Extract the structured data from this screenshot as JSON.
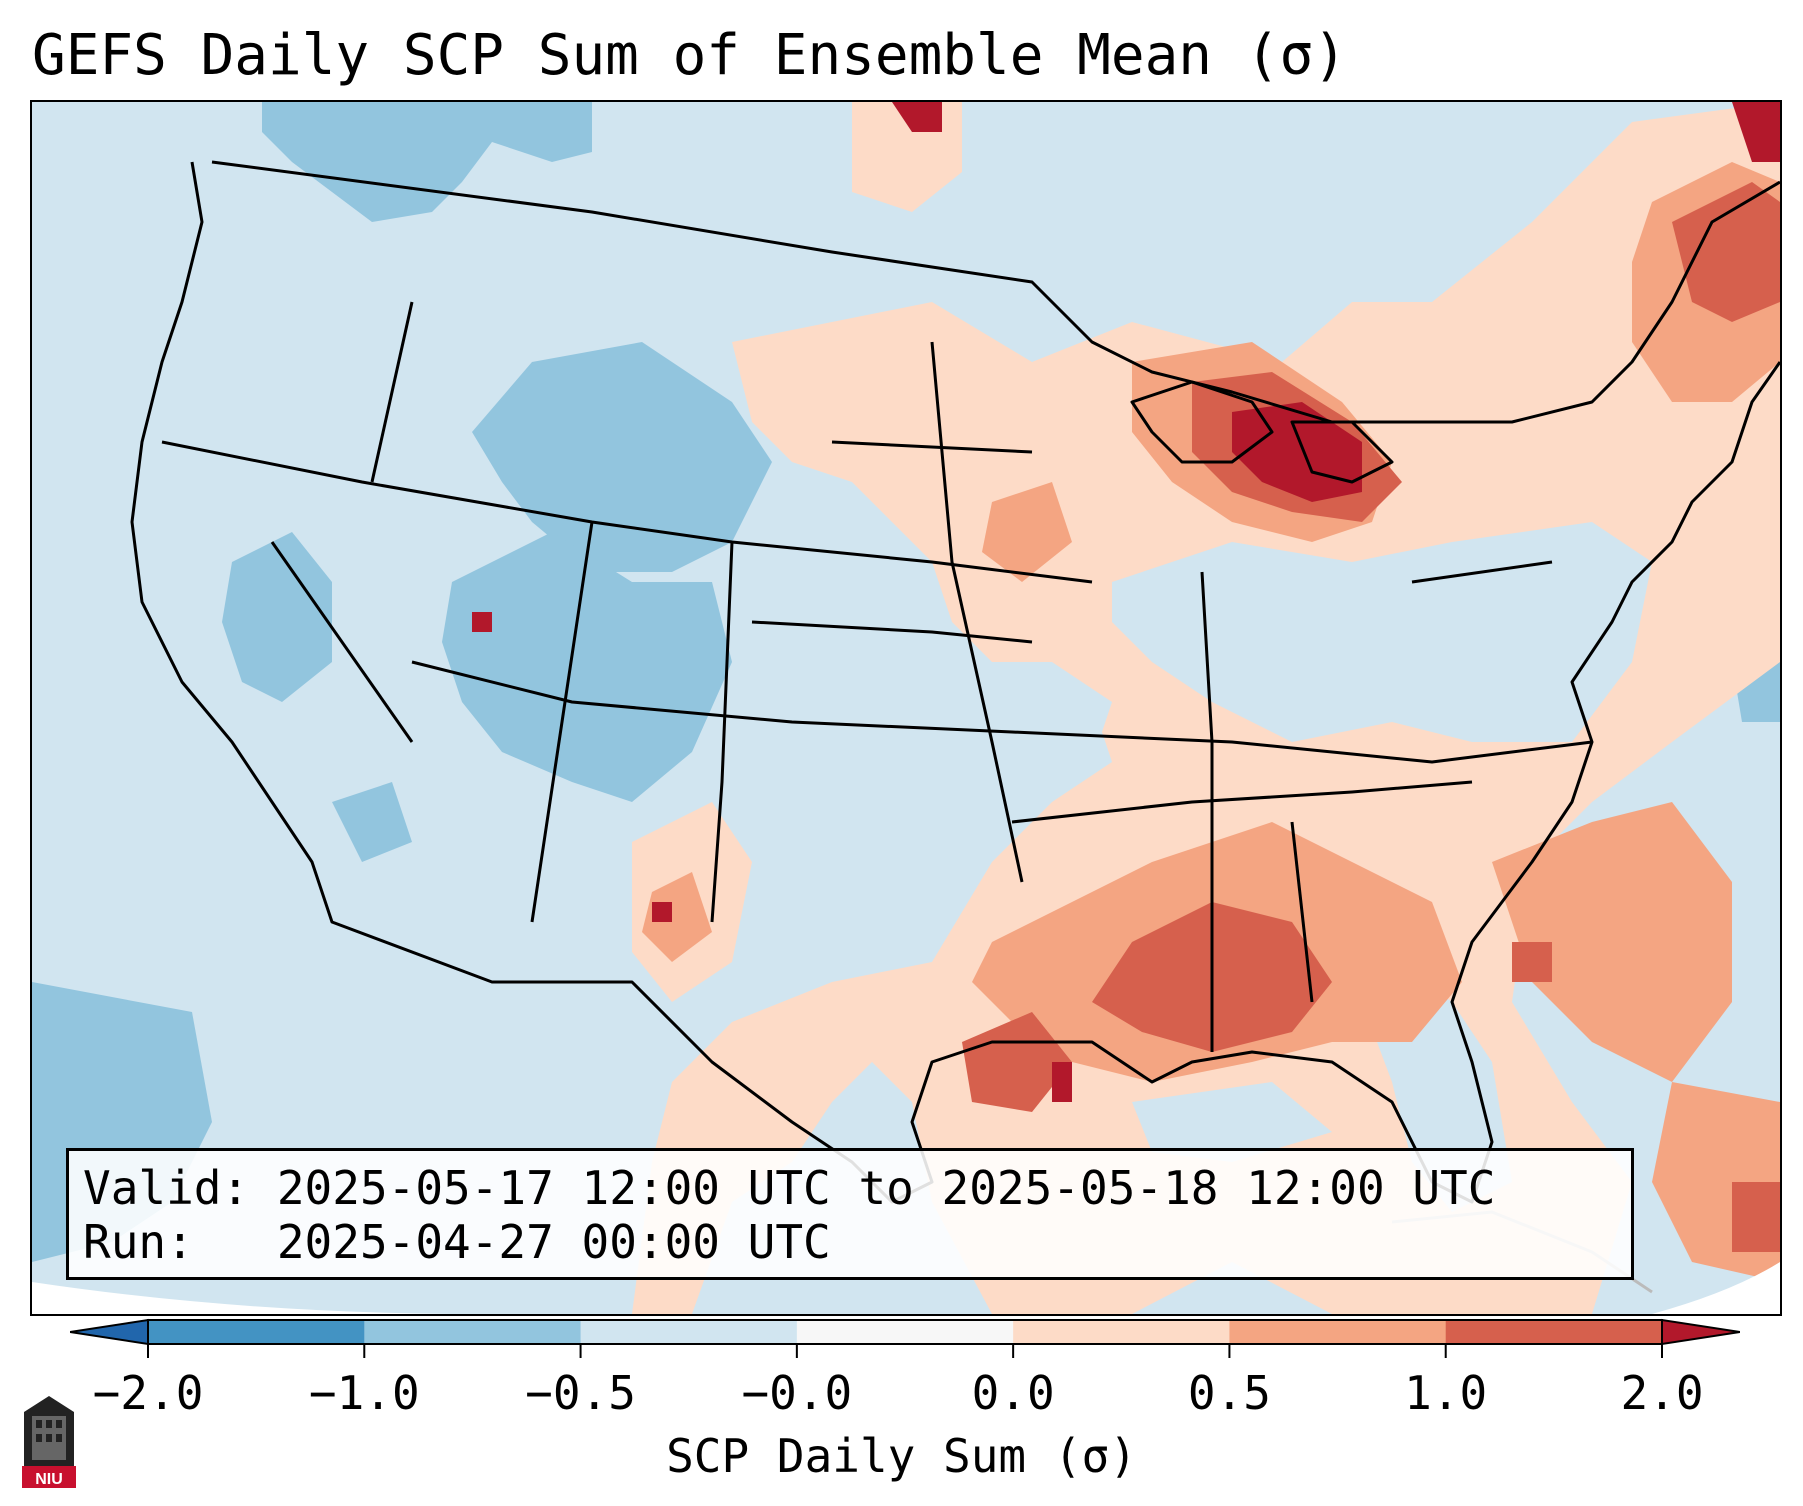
{
  "title": "GEFS Daily SCP Sum of Ensemble Mean (σ)",
  "info": {
    "valid_line": "Valid: 2025-05-17 12:00 UTC to 2025-05-18 12:00 UTC",
    "run_line": "Run:   2025-04-27 00:00 UTC"
  },
  "colorbar": {
    "label": "SCP Daily Sum (σ)",
    "ticks": [
      "−2.0",
      "−1.0",
      "−0.5",
      "−0.0",
      "0.0",
      "0.5",
      "1.0",
      "2.0"
    ],
    "bin_colors": [
      "#4393c3",
      "#92c5de",
      "#d1e5f0",
      "#f7f7f7",
      "#fddbc7",
      "#f4a582",
      "#d6604d"
    ],
    "under_color": "#2166ac",
    "over_color": "#b2182b"
  },
  "map": {
    "field": "SCP daily sum anomaly",
    "region": "CONUS",
    "background_color": "#d1e5f0"
  },
  "logo": {
    "text": "NIU"
  }
}
